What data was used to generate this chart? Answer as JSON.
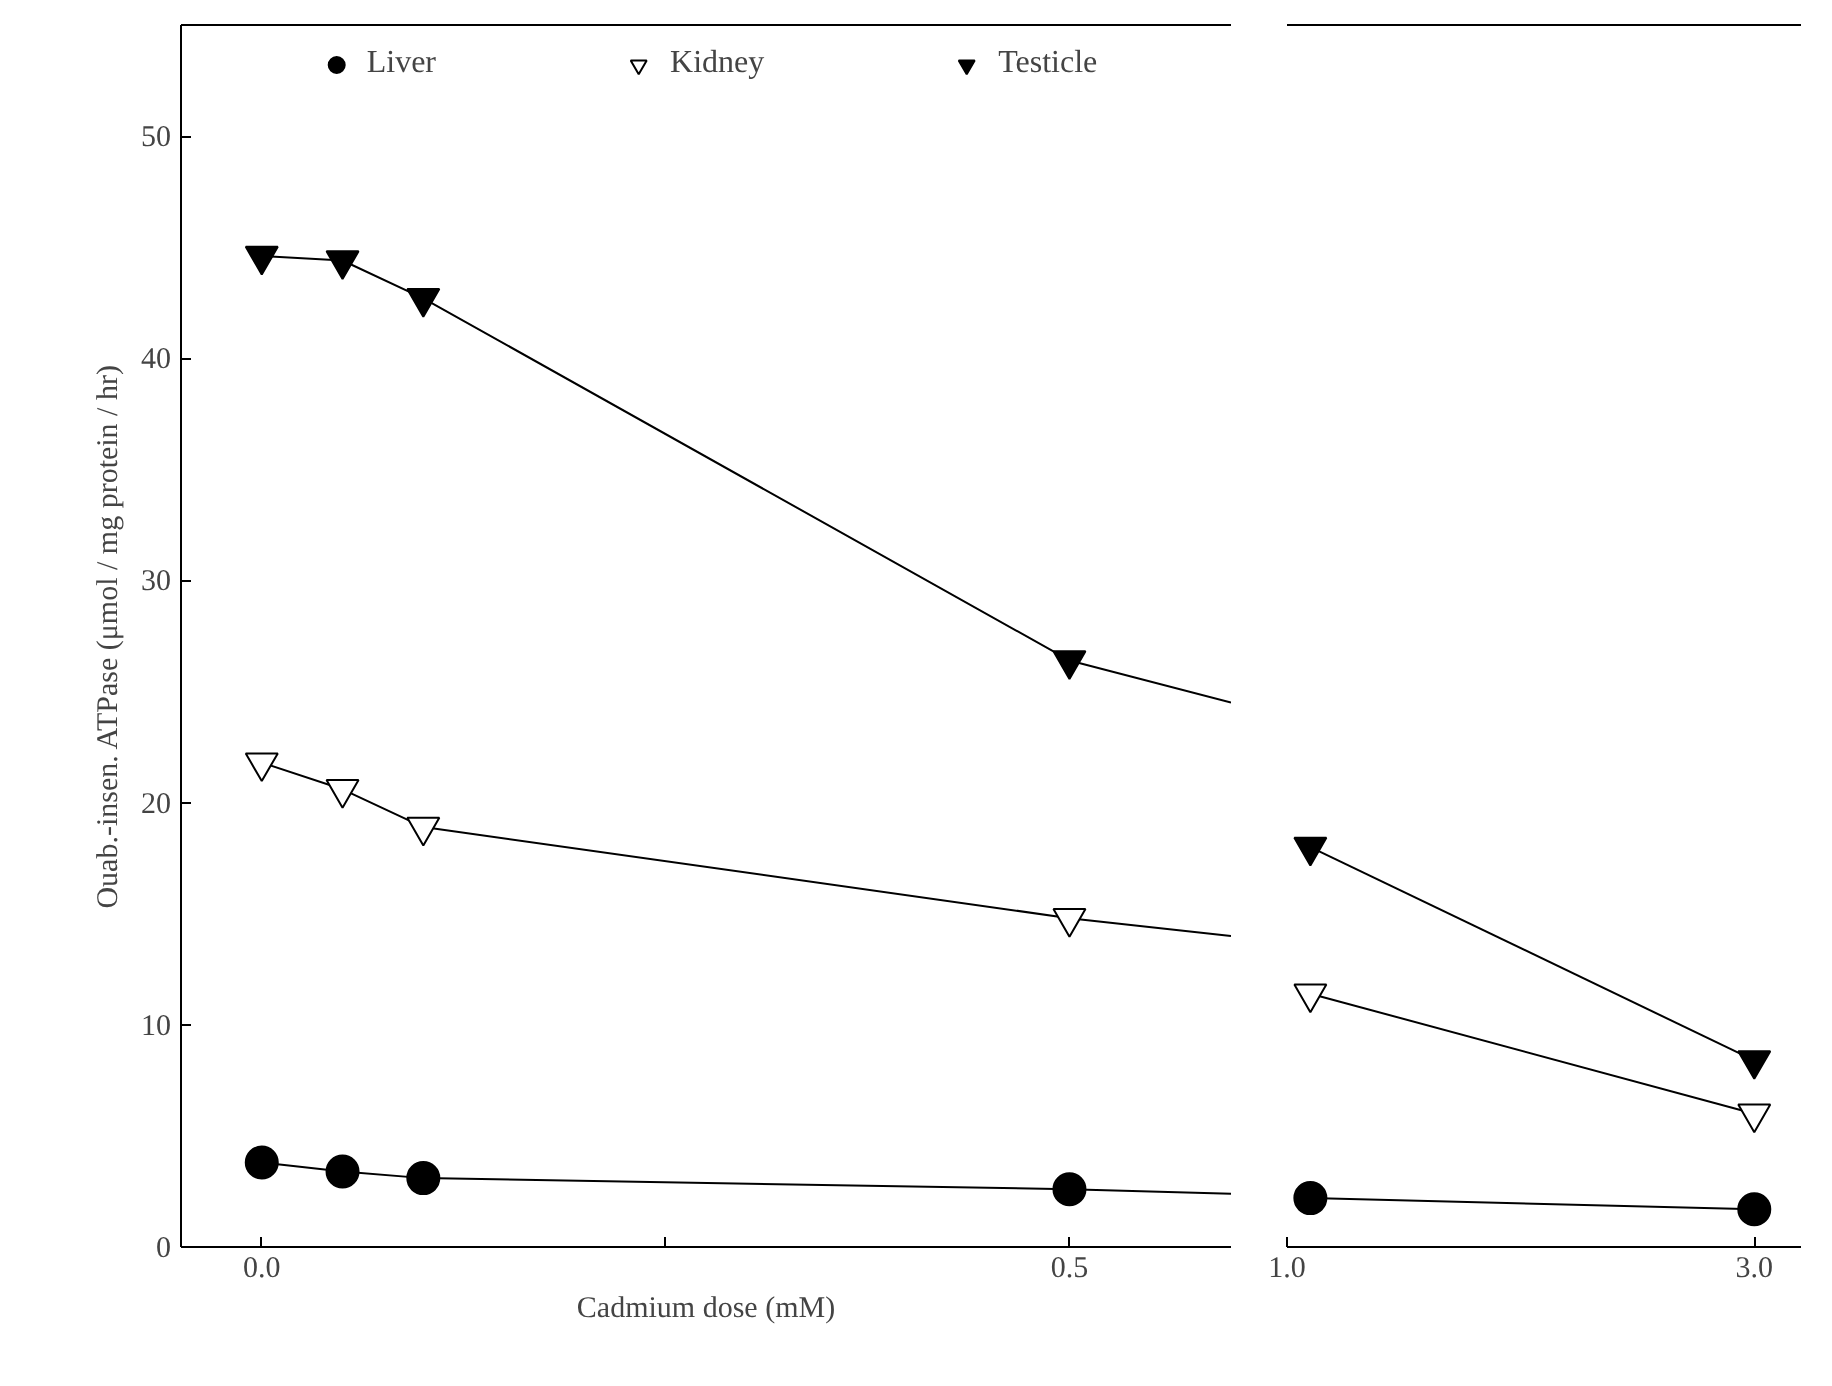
{
  "chart_data": [
    {
      "type": "scatter",
      "xlabel": "Cadmium dose (mM)",
      "ylabel": "Ouab.-insen. ATPase (μmol / mg protein / hr)",
      "xlim": [
        -0.05,
        0.6
      ],
      "xticks": [
        {
          "value": 0,
          "label": "0.0"
        },
        {
          "value": 0.25,
          "label": null
        },
        {
          "value": 0.5,
          "label": "0.5"
        }
      ],
      "ylim": [
        0,
        55
      ],
      "yticks": [
        0,
        10,
        20,
        30,
        40,
        50
      ],
      "grid": false,
      "legend": "top",
      "series": [
        {
          "type": "line",
          "color": "#000000",
          "x": [
            0,
            0.05,
            0.1,
            0.5,
            0.6
          ],
          "values": [
            3.8,
            3.4,
            3.1,
            2.6,
            2.4
          ]
        },
        {
          "type": "line",
          "color": "#000000",
          "x": [
            0,
            0.05,
            0.1,
            0.5,
            0.6
          ],
          "values": [
            21.8,
            20.6,
            18.9,
            14.8,
            14.0
          ]
        },
        {
          "type": "line",
          "color": "#000000",
          "x": [
            0,
            0.05,
            0.1,
            0.5,
            0.6
          ],
          "values": [
            44.6,
            44.4,
            42.7,
            26.4,
            24.5
          ]
        },
        {
          "name": "Liver",
          "marker": "circle",
          "color": "#000000",
          "x": [
            0,
            0.05,
            0.1,
            0.5
          ],
          "values": [
            3.8,
            3.4,
            3.1,
            2.6
          ]
        },
        {
          "name": "Kidney",
          "marker": "triangle_open",
          "color": "#000000",
          "x": [
            0,
            0.05,
            0.1,
            0.5
          ],
          "values": [
            21.8,
            20.6,
            18.9,
            14.8
          ]
        },
        {
          "name": "Testicle",
          "marker": "triangle",
          "color": "#000000",
          "x": [
            0,
            0.05,
            0.1,
            0.5
          ],
          "values": [
            44.6,
            44.4,
            42.7,
            26.4
          ]
        }
      ]
    },
    {
      "type": "scatter",
      "xlim": [
        1.0,
        3.2
      ],
      "xticks": [
        {
          "value": 1,
          "label": "1.0"
        },
        {
          "value": 3,
          "label": "3.0"
        }
      ],
      "ylim": [
        0,
        55
      ],
      "yticks": [
        0,
        10,
        20,
        30,
        40,
        50
      ],
      "tick_labels": "x",
      "grid": false,
      "series": [
        {
          "type": "line",
          "color": "#000000",
          "x": [
            1.1,
            3.0
          ],
          "values": [
            2.2,
            1.7
          ]
        },
        {
          "type": "line",
          "color": "#000000",
          "x": [
            1.1,
            3.0
          ],
          "values": [
            11.4,
            6.0
          ]
        },
        {
          "type": "line",
          "color": "#000000",
          "x": [
            1.1,
            3.0
          ],
          "values": [
            18.0,
            8.4
          ]
        },
        {
          "marker": "circle",
          "color": "#000000",
          "x": [
            1.1,
            3.0
          ],
          "values": [
            2.2,
            1.7
          ]
        },
        {
          "marker": "triangle_open",
          "color": "#000000",
          "x": [
            1.1,
            3.0
          ],
          "values": [
            11.4,
            6.0
          ]
        },
        {
          "marker": "triangle",
          "color": "#000000",
          "x": [
            1.1,
            3.0
          ],
          "values": [
            18.0,
            8.4
          ]
        }
      ]
    }
  ]
}
